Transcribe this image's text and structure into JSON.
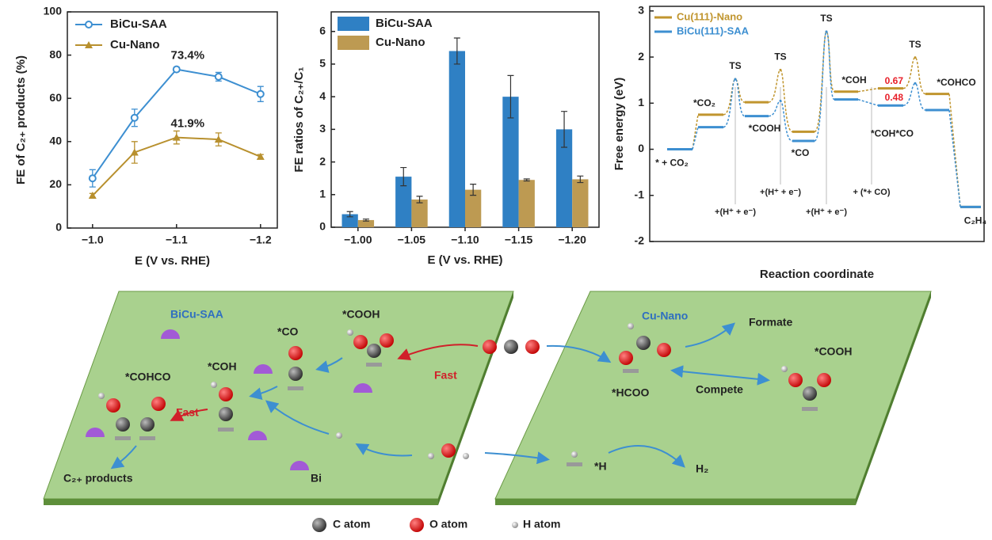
{
  "chart_data": [
    {
      "type": "line",
      "ylabel": "FE of C₂₊ products (%)",
      "xlabel": "E (V vs. RHE)",
      "x": [
        -1.0,
        -1.05,
        -1.1,
        -1.15,
        -1.2
      ],
      "series": [
        {
          "name": "BiCu-SAA",
          "color": "#3d8fd1",
          "marker": "circle",
          "values": [
            23,
            51,
            73.4,
            70,
            62
          ],
          "errors": [
            4,
            4,
            1,
            2,
            3.5
          ],
          "value_labels": [
            null,
            null,
            "73.4%",
            null,
            null
          ]
        },
        {
          "name": "Cu-Nano",
          "color": "#b8902e",
          "marker": "triangle",
          "values": [
            15,
            35,
            41.9,
            41,
            33
          ],
          "errors": [
            1,
            5,
            3,
            3,
            1
          ],
          "value_labels": [
            null,
            null,
            "41.9%",
            null,
            null
          ]
        }
      ],
      "xlim": [
        -0.97,
        -1.22
      ],
      "xticks": [
        {
          "value": -1.0,
          "label": "−1.0"
        },
        {
          "value": -1.1,
          "label": "−1.1"
        },
        {
          "value": -1.2,
          "label": "−1.2"
        }
      ],
      "ylim": [
        0,
        100
      ],
      "yticks": [
        0,
        20,
        40,
        60,
        80,
        100
      ],
      "legend": "top-left"
    },
    {
      "type": "bar",
      "ylabel": "FE ratios of C₂₊/C₁",
      "xlabel": "E (V vs. RHE)",
      "categories": [
        "−1.00",
        "−1.05",
        "−1.10",
        "−1.15",
        "−1.20"
      ],
      "series": [
        {
          "name": "BiCu-SAA",
          "color": "#2f80c4",
          "values": [
            0.4,
            1.55,
            5.4,
            4.0,
            3.0
          ],
          "errors": [
            0.08,
            0.28,
            0.4,
            0.65,
            0.55
          ]
        },
        {
          "name": "Cu-Nano",
          "color": "#bd9a52",
          "values": [
            0.22,
            0.85,
            1.15,
            1.45,
            1.47
          ],
          "errors": [
            0.03,
            0.1,
            0.17,
            0.03,
            0.1
          ]
        }
      ],
      "ylim": [
        0,
        6.6
      ],
      "yticks": [
        0,
        1,
        2,
        3,
        4,
        5,
        6
      ],
      "legend": "top-left"
    },
    {
      "type": "energy_profile",
      "ylabel": "Free energy (eV)",
      "xlabel": "Reaction coordinate",
      "states": [
        "* + CO₂",
        "*CO₂",
        "TS",
        "*COOH",
        "TS",
        "*CO",
        "TS",
        "*COH",
        "*COH*CO",
        "TS",
        "*COHCO",
        "C₂H₄"
      ],
      "series": [
        {
          "name": "Cu(111)-Nano",
          "color": "#c0952e",
          "values": [
            0,
            0.75,
            1.52,
            1.02,
            1.72,
            0.38,
            2.55,
            1.25,
            1.32,
            1.99,
            1.2,
            -1.25
          ]
        },
        {
          "name": "BiCu(111)-SAA",
          "color": "#3d8fd1",
          "values": [
            0,
            0.48,
            1.52,
            0.72,
            1.05,
            0.18,
            2.55,
            1.08,
            0.95,
            1.43,
            0.85,
            -1.25
          ]
        }
      ],
      "annotations": [
        {
          "text": "0.67",
          "color": "#e8202a"
        },
        {
          "text": "0.48",
          "color": "#e8202a"
        }
      ],
      "steps": [
        "+(H⁺ + e⁻)",
        "+(H⁺ + e⁻)",
        "+(H⁺ + e⁻)",
        "+ (*+ CO)"
      ],
      "ylim": [
        -2,
        3.1
      ],
      "yticks": [
        -2,
        -1,
        0,
        1,
        2,
        3
      ],
      "legend": "top-left"
    }
  ],
  "diagram": {
    "left_panel": {
      "title": "BiCu-SAA",
      "labels": [
        "*COOH",
        "*CO",
        "*COH",
        "*COHCO",
        "Fast",
        "Fast",
        "C₂₊ products",
        "Bi"
      ]
    },
    "right_panel": {
      "title": "Cu-Nano",
      "labels": [
        "Formate",
        "*COOH",
        "*HCOO",
        "Compete",
        "*H",
        "H₂"
      ]
    },
    "legend": [
      "C atom",
      "O atom",
      "H atom"
    ]
  }
}
